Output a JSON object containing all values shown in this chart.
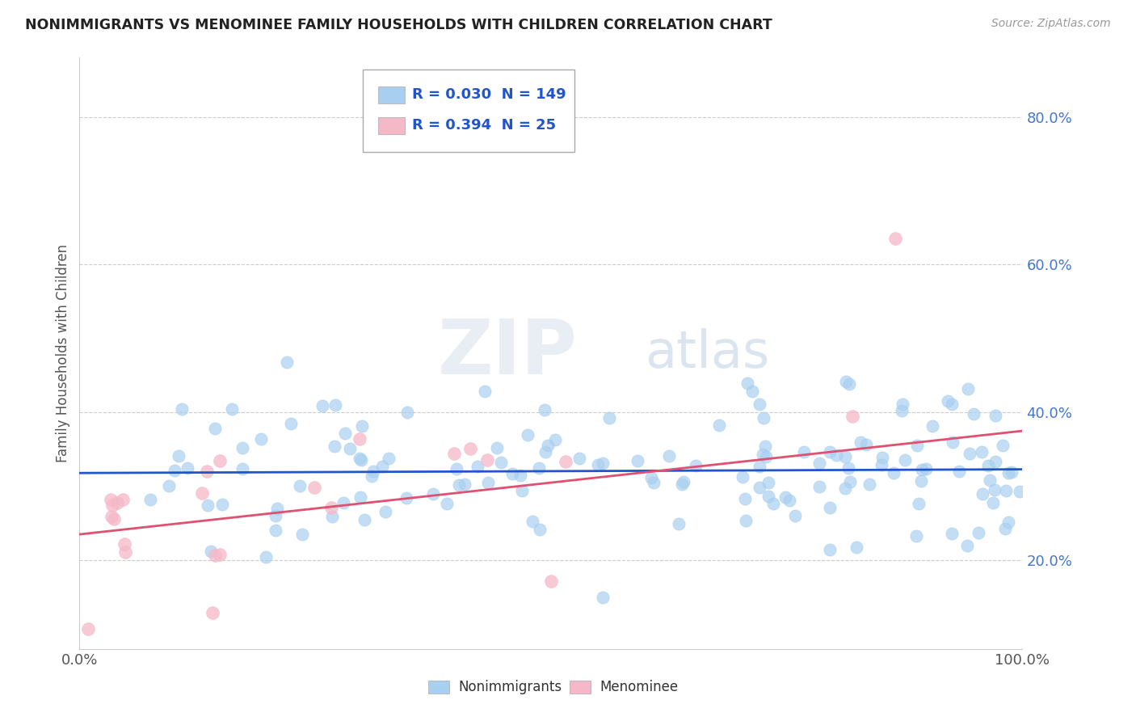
{
  "title": "NONIMMIGRANTS VS MENOMINEE FAMILY HOUSEHOLDS WITH CHILDREN CORRELATION CHART",
  "source": "Source: ZipAtlas.com",
  "ylabel": "Family Households with Children",
  "yticks": [
    0.2,
    0.4,
    0.6,
    0.8
  ],
  "ytick_labels": [
    "20.0%",
    "40.0%",
    "60.0%",
    "80.0%"
  ],
  "xtick_labels": [
    "0.0%",
    "100.0%"
  ],
  "xlim": [
    0.0,
    1.0
  ],
  "ylim": [
    0.08,
    0.88
  ],
  "blue_R": 0.03,
  "blue_N": 149,
  "pink_R": 0.394,
  "pink_N": 25,
  "blue_color": "#a8cff0",
  "pink_color": "#f5b8c8",
  "blue_line_color": "#2255cc",
  "pink_line_color": "#e05070",
  "watermark_zip": "ZIP",
  "watermark_atlas": "atlas",
  "legend_labels": [
    "Nonimmigrants",
    "Menominee"
  ],
  "background_color": "#ffffff",
  "grid_color": "#cccccc",
  "seed": 42,
  "blue_line_intercept": 0.318,
  "blue_line_slope": 0.005,
  "pink_line_intercept": 0.235,
  "pink_line_slope": 0.14
}
